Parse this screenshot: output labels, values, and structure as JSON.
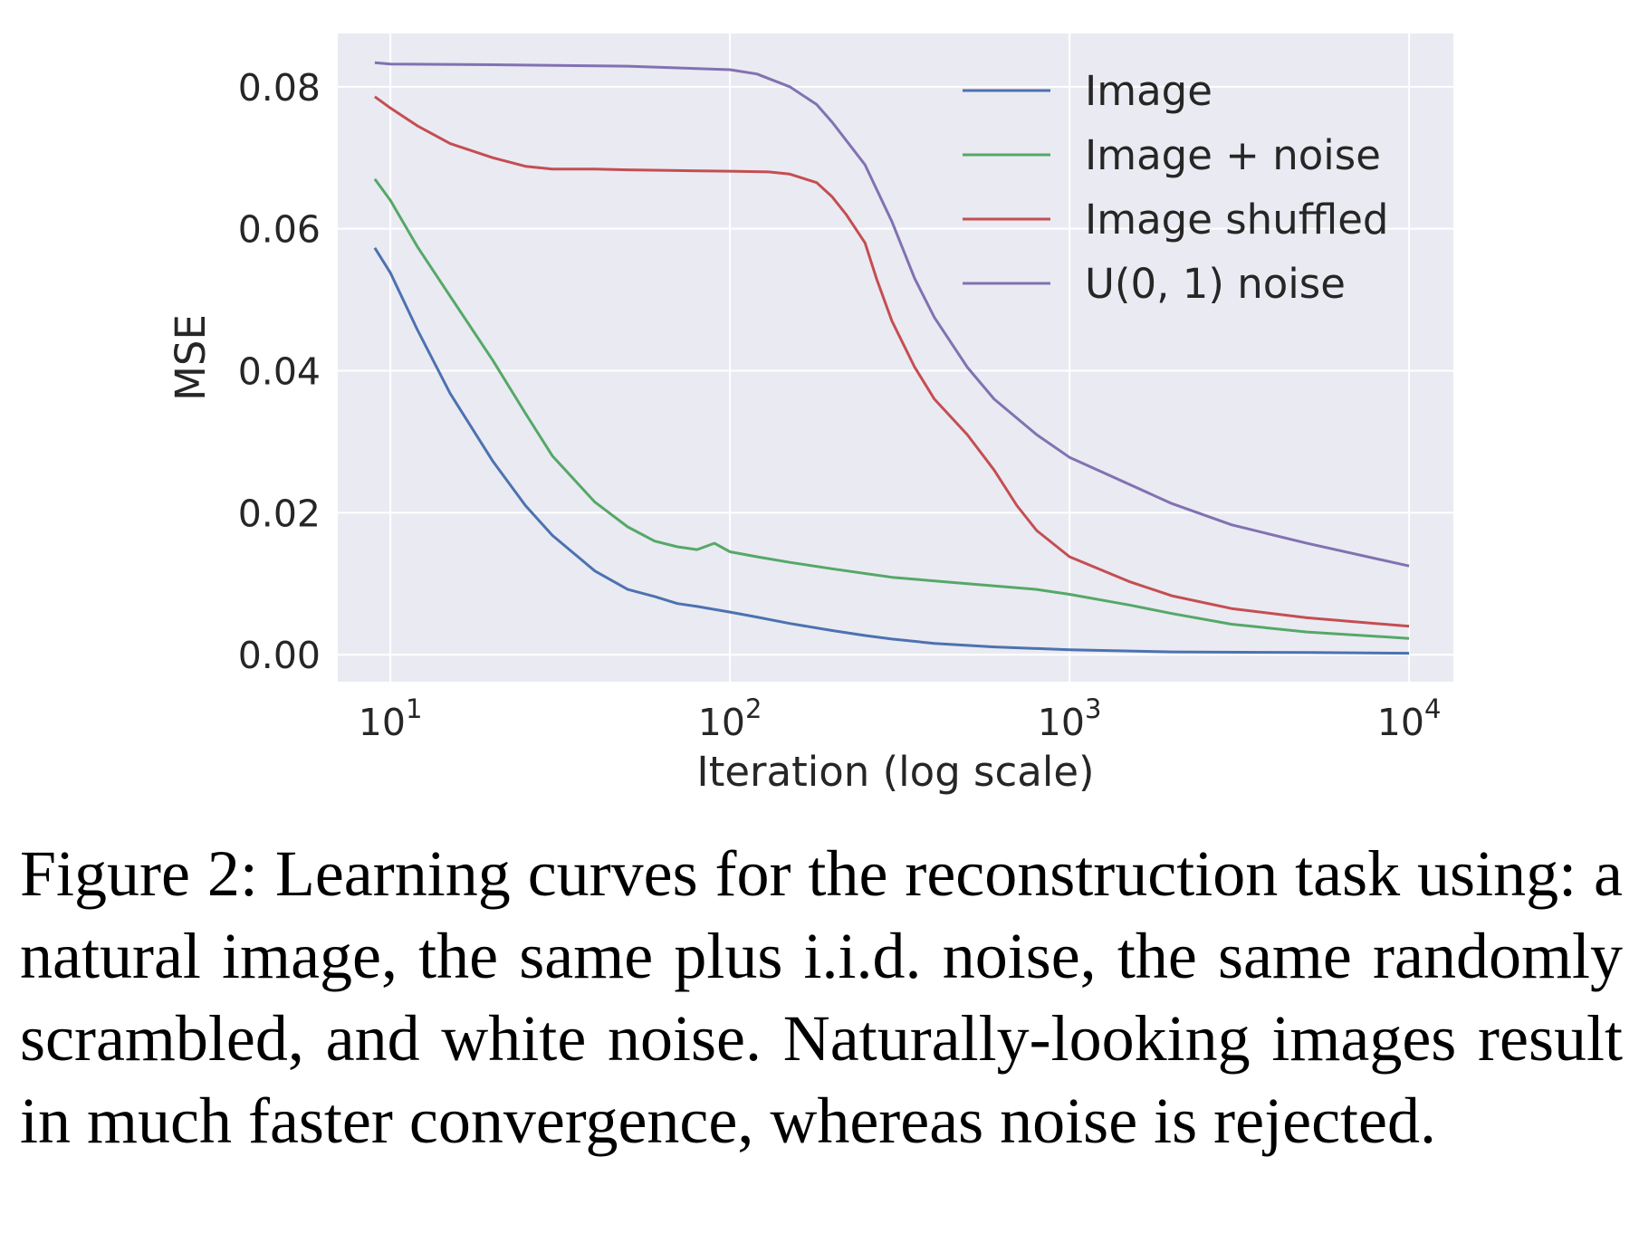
{
  "chart_data": {
    "type": "line",
    "xscale": "log",
    "xlabel": "Iteration (log scale)",
    "ylabel": "MSE",
    "xlim": [
      7,
      13500
    ],
    "ylim": [
      -0.0038,
      0.0875
    ],
    "grid": true,
    "legend_position": "top-right",
    "x_ticks": [
      {
        "value": 10,
        "base": "10",
        "exp": "1"
      },
      {
        "value": 100,
        "base": "10",
        "exp": "2"
      },
      {
        "value": 1000,
        "base": "10",
        "exp": "3"
      },
      {
        "value": 10000,
        "base": "10",
        "exp": "4"
      }
    ],
    "y_ticks": [
      {
        "value": 0.0,
        "label": "0.00"
      },
      {
        "value": 0.02,
        "label": "0.02"
      },
      {
        "value": 0.04,
        "label": "0.04"
      },
      {
        "value": 0.06,
        "label": "0.06"
      },
      {
        "value": 0.08,
        "label": "0.08"
      }
    ],
    "series": [
      {
        "name": "Image",
        "color": "#4c72b0",
        "x": [
          9,
          10,
          12,
          15,
          20,
          25,
          30,
          40,
          50,
          60,
          70,
          80,
          100,
          120,
          150,
          200,
          250,
          300,
          400,
          600,
          1000,
          2000,
          5000,
          10000
        ],
        "y": [
          0.0573,
          0.0538,
          0.0458,
          0.0368,
          0.0273,
          0.021,
          0.0168,
          0.0118,
          0.0092,
          0.0082,
          0.0072,
          0.0068,
          0.006,
          0.0053,
          0.0044,
          0.0034,
          0.0027,
          0.0022,
          0.0016,
          0.0011,
          0.0007,
          0.0004,
          0.0003,
          0.0002
        ]
      },
      {
        "name": "Image + noise",
        "color": "#55a868",
        "x": [
          9,
          10,
          12,
          15,
          20,
          25,
          30,
          40,
          50,
          60,
          70,
          80,
          90,
          100,
          120,
          150,
          200,
          300,
          500,
          800,
          1000,
          1500,
          2000,
          3000,
          5000,
          10000
        ],
        "y": [
          0.067,
          0.064,
          0.0575,
          0.0505,
          0.0415,
          0.034,
          0.028,
          0.0215,
          0.018,
          0.016,
          0.0152,
          0.0148,
          0.0157,
          0.0145,
          0.0138,
          0.013,
          0.0121,
          0.0109,
          0.01,
          0.0092,
          0.0085,
          0.007,
          0.0058,
          0.0043,
          0.0032,
          0.0023
        ]
      },
      {
        "name": "Image shuffled",
        "color": "#c44e52",
        "x": [
          9,
          10,
          12,
          15,
          20,
          25,
          30,
          40,
          50,
          70,
          100,
          130,
          150,
          180,
          200,
          220,
          250,
          270,
          300,
          350,
          400,
          500,
          600,
          700,
          800,
          1000,
          1500,
          2000,
          3000,
          5000,
          10000
        ],
        "y": [
          0.0786,
          0.077,
          0.0745,
          0.072,
          0.07,
          0.0688,
          0.0684,
          0.0684,
          0.0683,
          0.0682,
          0.0681,
          0.068,
          0.0677,
          0.0665,
          0.0645,
          0.062,
          0.058,
          0.053,
          0.047,
          0.0405,
          0.036,
          0.031,
          0.026,
          0.021,
          0.0175,
          0.0138,
          0.0103,
          0.0083,
          0.0065,
          0.0052,
          0.004
        ]
      },
      {
        "name": "U(0, 1) noise",
        "color": "#8172b2",
        "x": [
          9,
          10,
          20,
          50,
          100,
          120,
          150,
          180,
          200,
          250,
          300,
          350,
          400,
          500,
          600,
          800,
          1000,
          1500,
          2000,
          3000,
          5000,
          10000
        ],
        "y": [
          0.0834,
          0.0832,
          0.0831,
          0.0829,
          0.0824,
          0.0818,
          0.08,
          0.0775,
          0.075,
          0.069,
          0.061,
          0.053,
          0.0475,
          0.0405,
          0.036,
          0.031,
          0.0278,
          0.024,
          0.0213,
          0.0183,
          0.0157,
          0.0125
        ]
      }
    ]
  },
  "caption": "Figure 2:  Learning curves for the reconstruction task using: a natural image, the same plus i.i.d. noise, the same randomly scrambled, and white noise.  Naturally-looking images result in much faster convergence, whereas noise is rejected."
}
